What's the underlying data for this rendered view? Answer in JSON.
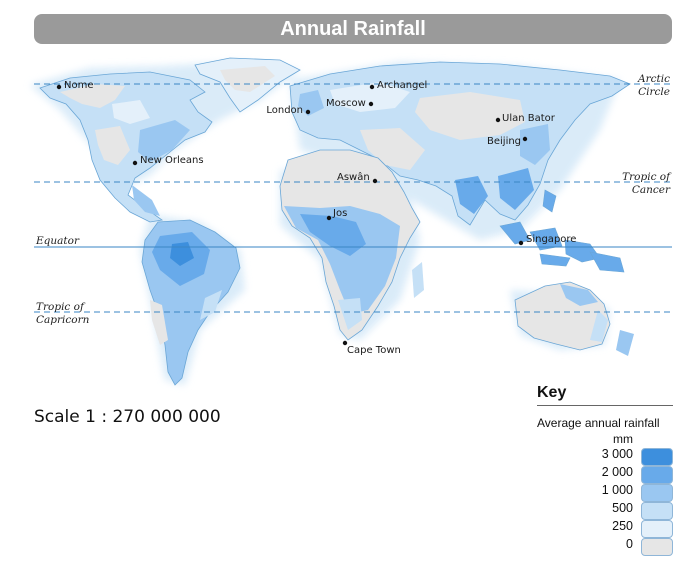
{
  "title": "Annual Rainfall",
  "scale": "Scale 1 : 270 000 000",
  "lines": {
    "arctic": [
      "Arctic",
      "Circle"
    ],
    "cancer": [
      "Tropic of",
      "Cancer"
    ],
    "equator": "Equator",
    "capricorn": [
      "Tropic of",
      "Capricorn"
    ]
  },
  "cities": {
    "nome": "Nome",
    "archangel": "Archangel",
    "london": "London",
    "moscow": "Moscow",
    "ulan_bator": "Ulan Bator",
    "beijing": "Beijing",
    "new_orleans": "New Orleans",
    "aswan": "Aswân",
    "jos": "Jos",
    "singapore": "Singapore",
    "cape_town": "Cape Town"
  },
  "key": {
    "title": "Key",
    "subtitle": "Average annual rainfall",
    "unit": "mm",
    "levels": [
      {
        "label": "3 000",
        "color": "#3d8fdd"
      },
      {
        "label": "2 000",
        "color": "#68aaea"
      },
      {
        "label": "1 000",
        "color": "#9ac7f1"
      },
      {
        "label": "500",
        "color": "#c5e0f6"
      },
      {
        "label": "250",
        "color": "#e4f0fa"
      },
      {
        "label": "0",
        "color": "#e6e6e6"
      }
    ]
  },
  "colors": {
    "dry": "#e6e6e6",
    "r250": "#e4f0fa",
    "r500": "#c5e0f6",
    "r1000": "#9ac7f1",
    "r2000": "#68aaea",
    "r3000": "#3d8fdd",
    "coast": "#6aa6d6",
    "line": "#3a86c4"
  }
}
